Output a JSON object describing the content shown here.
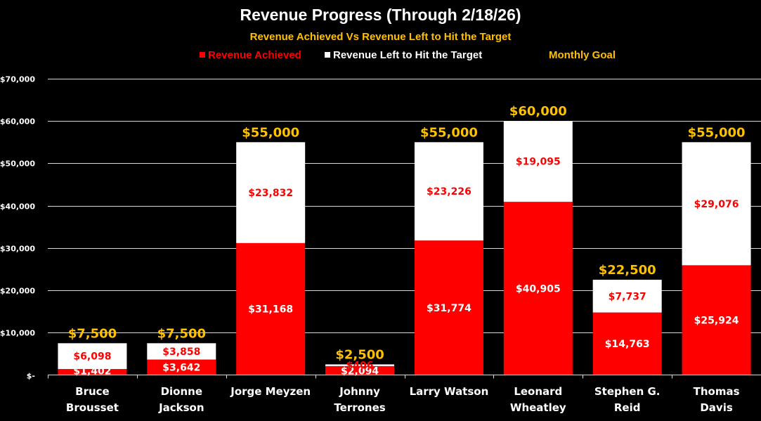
{
  "chart_data": {
    "type": "bar",
    "stacked": true,
    "title": "Revenue Progress (Through 2/18/26)",
    "subtitle": "Revenue Achieved Vs Revenue Left to Hit the Target",
    "xlabel": "",
    "ylabel": "",
    "ylim": [
      0,
      70000
    ],
    "yticks": [
      0,
      10000,
      20000,
      30000,
      40000,
      50000,
      60000,
      70000
    ],
    "ytick_labels": [
      "$-",
      "$10,000",
      "$20,000",
      "$30,000",
      "$40,000",
      "$50,000",
      "$60,000",
      "$70,000"
    ],
    "grid": true,
    "legend_position": "top-center",
    "categories": [
      [
        "Bruce",
        "Brousset"
      ],
      [
        "Dionne",
        "Jackson"
      ],
      [
        "Jorge Meyzen"
      ],
      [
        "Johnny",
        "Terrones"
      ],
      [
        "Larry Watson"
      ],
      [
        "Leonard",
        "Wheatley"
      ],
      [
        "Stephen G.",
        "Reid"
      ],
      [
        "Thomas",
        "Davis"
      ]
    ],
    "series": [
      {
        "name": "Revenue Achieved",
        "color": "#FF0000",
        "label_color": "#FFFFFF",
        "values": [
          1402,
          3642,
          31168,
          2094,
          31774,
          40905,
          14763,
          25924
        ],
        "labels": [
          "$1,402",
          "$3,642",
          "$31,168",
          "$2,094",
          "$31,774",
          "$40,905",
          "$14,763",
          "$25,924"
        ]
      },
      {
        "name": "Revenue Left to Hit the Target",
        "color": "#FFFFFF",
        "label_color": "#FF0000",
        "values": [
          6098,
          3858,
          23832,
          406,
          23226,
          19095,
          7737,
          29076
        ],
        "labels": [
          "$6,098",
          "$3,858",
          "$23,832",
          "$406",
          "$23,226",
          "$19,095",
          "$7,737",
          "$29,076"
        ]
      },
      {
        "name": "Monthly Goal",
        "color": "#FFC000",
        "values": [
          7500,
          7500,
          55000,
          2500,
          55000,
          60000,
          22500,
          55000
        ],
        "labels": [
          "$7,500",
          "$7,500",
          "$55,000",
          "$2,500",
          "$55,000",
          "$60,000",
          "$22,500",
          "$55,000"
        ]
      }
    ]
  },
  "legend": {
    "achieved": "Revenue Achieved",
    "left": "Revenue Left to Hit the Target",
    "goal": "Monthly Goal"
  },
  "colors": {
    "achieved": "#FF0000",
    "left": "#FFFFFF",
    "goal": "#FFC000",
    "background": "#000000",
    "grid": "#D9D9D9"
  }
}
